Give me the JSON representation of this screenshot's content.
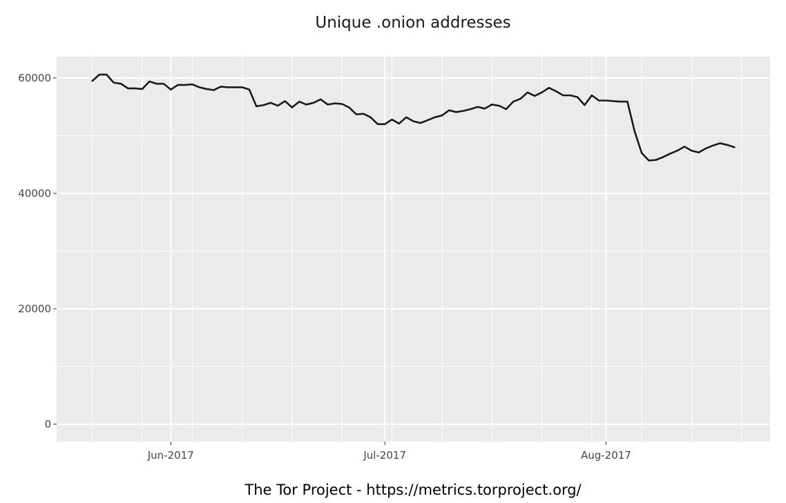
{
  "chart_data": {
    "type": "line",
    "title": "Unique .onion addresses",
    "caption": "The Tor Project - https://metrics.torproject.org/",
    "xlabel": "",
    "ylabel": "",
    "x_start": "2017-05-21",
    "x_end": "2017-08-18",
    "xlim": [
      "2017-05-16",
      "2017-08-24"
    ],
    "ylim": [
      -3000,
      63700
    ],
    "y_ticks": [
      0,
      20000,
      40000,
      60000
    ],
    "y_tick_labels": [
      "0",
      "20000",
      "40000",
      "60000"
    ],
    "x_ticks": [
      "2017-06-01",
      "2017-07-01",
      "2017-08-01"
    ],
    "x_tick_labels": [
      "Jun-2017",
      "Jul-2017",
      "Aug-2017"
    ],
    "grid": true,
    "legend": "none",
    "colors": {
      "panel": "#ebebeb",
      "grid": "#ffffff",
      "line": "#1a1a1a"
    },
    "series": [
      {
        "values": [
          59500,
          60600,
          60600,
          59200,
          59000,
          58200,
          58200,
          58100,
          59400,
          59000,
          59000,
          58000,
          58800,
          58800,
          58900,
          58400,
          58100,
          57900,
          58500,
          58400,
          58400,
          58400,
          58000,
          55100,
          55300,
          55700,
          55200,
          56000,
          54900,
          55900,
          55400,
          55700,
          56300,
          55400,
          55600,
          55500,
          54900,
          53700,
          53800,
          53200,
          52000,
          52000,
          52800,
          52100,
          53200,
          52500,
          52200,
          52700,
          53200,
          53500,
          54400,
          54100,
          54300,
          54600,
          55000,
          54700,
          55400,
          55200,
          54600,
          55900,
          56400,
          57500,
          56900,
          57500,
          58300,
          57700,
          57000,
          57000,
          56700,
          55300,
          57000,
          56100,
          56100,
          56000,
          55900,
          55900,
          50800,
          47000,
          45700,
          45800,
          46300,
          46900,
          47400,
          48100,
          47400,
          47100,
          47800,
          48300,
          48700,
          48400,
          48000
        ]
      }
    ]
  }
}
